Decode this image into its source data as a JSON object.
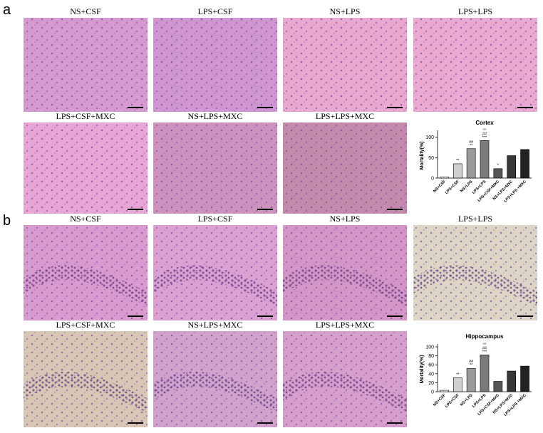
{
  "figure": {
    "panels": [
      {
        "label": "a",
        "images": [
          "NS+CSF",
          "LPS+CSF",
          "NS+LPS",
          "LPS+LPS",
          "LPS+CSF+MXC",
          "NS+LPS+MXC",
          "LPS+LPS+MXC"
        ]
      },
      {
        "label": "b",
        "images": [
          "NS+CSF",
          "LPS+CSF",
          "NS+LPS",
          "LPS+LPS",
          "LPS+CSF+MXC",
          "NS+LPS+MXC",
          "LPS+LPS+MXC"
        ]
      }
    ]
  },
  "chart_data": [
    {
      "type": "bar",
      "title": "Cortex",
      "y_label": "Mortality(%)",
      "categories": [
        "NS+CSF",
        "LPS+CSF",
        "NS+LPS",
        "LPS+LPS",
        "LPS+CSF+MXC",
        "NS+LPS+MXC",
        "LPS+LPS +MXC"
      ],
      "values": [
        3,
        35,
        72,
        92,
        23,
        55,
        70
      ],
      "colors": [
        "#ffffff",
        "#cfcfcf",
        "#9a9a9a",
        "#7a7a7a",
        "#555555",
        "#383838",
        "#222222"
      ],
      "annotations": [
        [],
        [
          "**"
        ],
        [
          "##",
          "**"
        ],
        [
          "^^",
          "##",
          "***"
        ],
        [
          "*"
        ],
        [],
        []
      ],
      "ylim": [
        0,
        110
      ],
      "yticks": [
        0,
        50,
        100
      ]
    },
    {
      "type": "bar",
      "title": "Hippocampus",
      "y_label": "Mortality(%)",
      "categories": [
        "NS+CSF",
        "LPS+CSF",
        "NS+LPS",
        "LPS+LPS",
        "LPS+CSF+MXC",
        "NS+LPS+MXC",
        "LPS+LPS +MXC"
      ],
      "values": [
        3,
        31,
        52,
        82,
        23,
        46,
        57
      ],
      "colors": [
        "#ffffff",
        "#cfcfcf",
        "#9a9a9a",
        "#7a7a7a",
        "#555555",
        "#383838",
        "#222222"
      ],
      "annotations": [
        [],
        [
          "**"
        ],
        [
          "##",
          "**"
        ],
        [
          "^^",
          "##",
          "***"
        ],
        [],
        [],
        []
      ],
      "ylim": [
        0,
        100
      ],
      "yticks": [
        0,
        20,
        40,
        60,
        80,
        100
      ]
    }
  ]
}
